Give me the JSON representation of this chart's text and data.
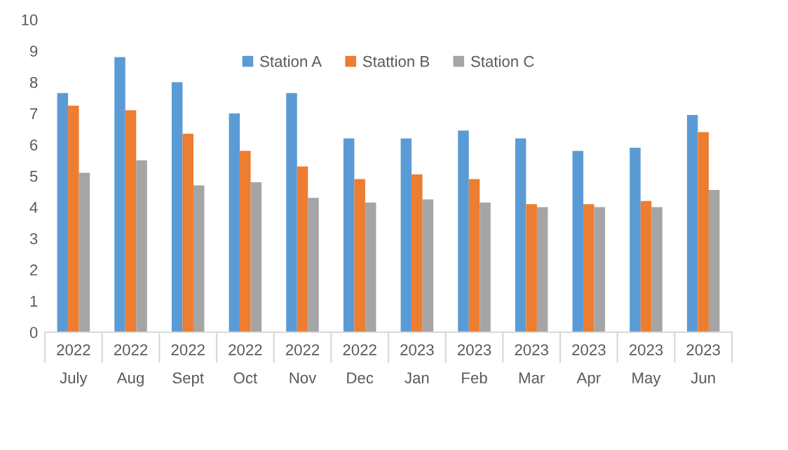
{
  "chart_data": {
    "type": "bar",
    "categories": [
      "2022\nJuly",
      "2022\nAug",
      "2022\nSept",
      "2022\nOct",
      "2022\nNov",
      "2022\nDec",
      "2023\nJan",
      "2023\nFeb",
      "2023\nMar",
      "2023\nApr",
      "2023\nMay",
      "2023\nJun"
    ],
    "series": [
      {
        "name": "Station A",
        "color": "#5b9bd5",
        "values": [
          7.65,
          8.8,
          8.0,
          7.0,
          7.65,
          6.2,
          6.2,
          6.45,
          6.2,
          5.8,
          5.9,
          6.95
        ]
      },
      {
        "name": "Stattion B",
        "color": "#ed7d31",
        "values": [
          7.25,
          7.1,
          6.35,
          5.8,
          5.3,
          4.9,
          5.05,
          4.9,
          4.1,
          4.1,
          4.2,
          6.4
        ]
      },
      {
        "name": "Station C",
        "color": "#a5a5a5",
        "values": [
          5.1,
          5.5,
          4.7,
          4.8,
          4.3,
          4.15,
          4.25,
          4.15,
          4.0,
          4.0,
          4.0,
          4.55
        ]
      }
    ],
    "ylim": [
      0,
      10
    ],
    "yticks": [
      0,
      1,
      2,
      3,
      4,
      5,
      6,
      7,
      8,
      9,
      10
    ],
    "grid": false,
    "legend": "top"
  }
}
